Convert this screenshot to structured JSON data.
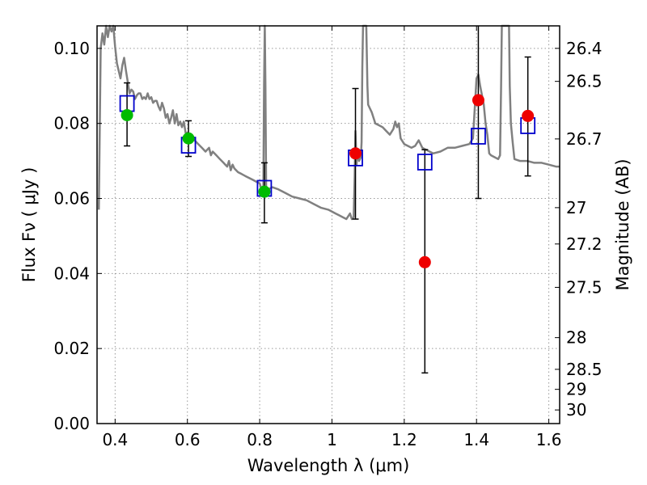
{
  "chart_data": {
    "type": "scatter",
    "title": "",
    "xlabel": "Wavelength  λ (μm)",
    "ylabel": "Flux  Fν  ( μJy )",
    "y2label": "Magnitude (AB)",
    "xlim": [
      0.35,
      1.63
    ],
    "ylim": [
      0.0,
      0.106
    ],
    "grid": true,
    "x_ticks": [
      0.4,
      0.6,
      0.8,
      1.0,
      1.2,
      1.4,
      1.6
    ],
    "x_tick_labels": [
      "0.4",
      "0.6",
      "0.8",
      "1",
      "1.2",
      "1.4",
      "1.6"
    ],
    "y_ticks": [
      0.0,
      0.02,
      0.04,
      0.06,
      0.08,
      0.1
    ],
    "y_tick_labels": [
      "0.00",
      "0.02",
      "0.04",
      "0.06",
      "0.08",
      "0.10"
    ],
    "y2_tick_labels": [
      "26.4",
      "26.5",
      "26.7",
      "27",
      "27.2",
      "27.5",
      "28",
      "28.5",
      "29",
      "30"
    ],
    "y2_ticks": [
      26.4,
      26.5,
      26.7,
      27.0,
      27.2,
      27.5,
      28.0,
      28.5,
      29.0,
      30.0
    ],
    "colors": {
      "model": "#808080",
      "green_points": "#00bb00",
      "red_points": "#ee0000",
      "model_boxes": "#0000cc",
      "error_bars": "#000000",
      "grid": "#999999"
    },
    "series": [
      {
        "marker": "line",
        "points": [
          [
            0.355,
            0.057
          ],
          [
            0.36,
            0.1
          ],
          [
            0.365,
            0.104
          ],
          [
            0.37,
            0.101
          ],
          [
            0.375,
            0.106
          ],
          [
            0.38,
            0.103
          ],
          [
            0.385,
            0.106
          ],
          [
            0.39,
            0.1045
          ],
          [
            0.395,
            0.106
          ],
          [
            0.4,
            0.1005
          ],
          [
            0.405,
            0.096
          ],
          [
            0.41,
            0.094
          ],
          [
            0.415,
            0.092
          ],
          [
            0.42,
            0.0955
          ],
          [
            0.425,
            0.0975
          ],
          [
            0.43,
            0.094
          ],
          [
            0.435,
            0.091
          ],
          [
            0.44,
            0.088
          ],
          [
            0.445,
            0.089
          ],
          [
            0.45,
            0.0885
          ],
          [
            0.455,
            0.0865
          ],
          [
            0.46,
            0.0875
          ],
          [
            0.465,
            0.088
          ],
          [
            0.47,
            0.088
          ],
          [
            0.475,
            0.0865
          ],
          [
            0.48,
            0.087
          ],
          [
            0.485,
            0.0865
          ],
          [
            0.49,
            0.088
          ],
          [
            0.495,
            0.0865
          ],
          [
            0.5,
            0.087
          ],
          [
            0.505,
            0.0855
          ],
          [
            0.51,
            0.086
          ],
          [
            0.515,
            0.086
          ],
          [
            0.52,
            0.0845
          ],
          [
            0.525,
            0.0835
          ],
          [
            0.53,
            0.0855
          ],
          [
            0.535,
            0.084
          ],
          [
            0.54,
            0.0815
          ],
          [
            0.545,
            0.0825
          ],
          [
            0.55,
            0.08
          ],
          [
            0.555,
            0.0815
          ],
          [
            0.56,
            0.0835
          ],
          [
            0.565,
            0.08
          ],
          [
            0.57,
            0.0825
          ],
          [
            0.575,
            0.0795
          ],
          [
            0.58,
            0.0805
          ],
          [
            0.585,
            0.079
          ],
          [
            0.59,
            0.0805
          ],
          [
            0.595,
            0.0775
          ],
          [
            0.6,
            0.0775
          ],
          [
            0.61,
            0.0765
          ],
          [
            0.62,
            0.0755
          ],
          [
            0.63,
            0.0745
          ],
          [
            0.64,
            0.0735
          ],
          [
            0.65,
            0.0725
          ],
          [
            0.66,
            0.0735
          ],
          [
            0.665,
            0.0715
          ],
          [
            0.67,
            0.0725
          ],
          [
            0.68,
            0.0715
          ],
          [
            0.69,
            0.0705
          ],
          [
            0.7,
            0.0695
          ],
          [
            0.705,
            0.069
          ],
          [
            0.71,
            0.0685
          ],
          [
            0.715,
            0.07
          ],
          [
            0.72,
            0.0675
          ],
          [
            0.725,
            0.069
          ],
          [
            0.73,
            0.068
          ],
          [
            0.74,
            0.067
          ],
          [
            0.75,
            0.0665
          ],
          [
            0.76,
            0.066
          ],
          [
            0.77,
            0.0655
          ],
          [
            0.78,
            0.065
          ],
          [
            0.79,
            0.0645
          ],
          [
            0.8,
            0.064
          ],
          [
            0.805,
            0.0625
          ],
          [
            0.81,
            0.062
          ],
          [
            0.812,
            0.09
          ],
          [
            0.814,
            0.106
          ],
          [
            0.816,
            0.09
          ],
          [
            0.818,
            0.062
          ],
          [
            0.825,
            0.0625
          ],
          [
            0.835,
            0.063
          ],
          [
            0.85,
            0.0625
          ],
          [
            0.87,
            0.0615
          ],
          [
            0.89,
            0.0605
          ],
          [
            0.91,
            0.06
          ],
          [
            0.93,
            0.0595
          ],
          [
            0.95,
            0.0585
          ],
          [
            0.97,
            0.0575
          ],
          [
            0.99,
            0.057
          ],
          [
            1.01,
            0.056
          ],
          [
            1.02,
            0.0555
          ],
          [
            1.03,
            0.055
          ],
          [
            1.04,
            0.0545
          ],
          [
            1.05,
            0.056
          ],
          [
            1.055,
            0.0545
          ],
          [
            1.06,
            0.055
          ],
          [
            1.063,
            0.066
          ],
          [
            1.065,
            0.078
          ],
          [
            1.068,
            0.069
          ],
          [
            1.07,
            0.072
          ],
          [
            1.075,
            0.07
          ],
          [
            1.08,
            0.071
          ],
          [
            1.082,
            0.075
          ],
          [
            1.084,
            0.095
          ],
          [
            1.086,
            0.106
          ],
          [
            1.095,
            0.106
          ],
          [
            1.098,
            0.09
          ],
          [
            1.1,
            0.085
          ],
          [
            1.11,
            0.083
          ],
          [
            1.12,
            0.08
          ],
          [
            1.13,
            0.0795
          ],
          [
            1.14,
            0.079
          ],
          [
            1.15,
            0.078
          ],
          [
            1.16,
            0.077
          ],
          [
            1.17,
            0.0785
          ],
          [
            1.175,
            0.0805
          ],
          [
            1.18,
            0.079
          ],
          [
            1.185,
            0.08
          ],
          [
            1.19,
            0.076
          ],
          [
            1.2,
            0.0745
          ],
          [
            1.21,
            0.074
          ],
          [
            1.22,
            0.0735
          ],
          [
            1.23,
            0.074
          ],
          [
            1.24,
            0.0755
          ],
          [
            1.25,
            0.0735
          ],
          [
            1.26,
            0.073
          ],
          [
            1.27,
            0.0725
          ],
          [
            1.28,
            0.072
          ],
          [
            1.3,
            0.0725
          ],
          [
            1.32,
            0.0735
          ],
          [
            1.34,
            0.0735
          ],
          [
            1.36,
            0.074
          ],
          [
            1.38,
            0.0745
          ],
          [
            1.39,
            0.076
          ],
          [
            1.395,
            0.084
          ],
          [
            1.4,
            0.092
          ],
          [
            1.405,
            0.093
          ],
          [
            1.41,
            0.09
          ],
          [
            1.42,
            0.085
          ],
          [
            1.425,
            0.08
          ],
          [
            1.43,
            0.077
          ],
          [
            1.435,
            0.072
          ],
          [
            1.44,
            0.0715
          ],
          [
            1.45,
            0.071
          ],
          [
            1.46,
            0.0705
          ],
          [
            1.465,
            0.0715
          ],
          [
            1.468,
            0.09
          ],
          [
            1.47,
            0.106
          ],
          [
            1.49,
            0.106
          ],
          [
            1.492,
            0.09
          ],
          [
            1.495,
            0.08
          ],
          [
            1.5,
            0.075
          ],
          [
            1.505,
            0.0705
          ],
          [
            1.52,
            0.07
          ],
          [
            1.54,
            0.07
          ],
          [
            1.56,
            0.0695
          ],
          [
            1.58,
            0.0695
          ],
          [
            1.6,
            0.069
          ],
          [
            1.62,
            0.0685
          ],
          [
            1.63,
            0.0685
          ]
        ]
      },
      {
        "marker": "circle",
        "points": [
          {
            "x": 0.433,
            "y": 0.0822
          },
          {
            "x": 0.603,
            "y": 0.076
          },
          {
            "x": 0.813,
            "y": 0.0618
          }
        ],
        "err_low": [
          0.074,
          0.0712,
          0.0535
        ],
        "err_high": [
          0.0908,
          0.0807,
          0.0695
        ]
      },
      {
        "marker": "circle",
        "points": [
          {
            "x": 1.065,
            "y": 0.072
          },
          {
            "x": 1.257,
            "y": 0.043
          },
          {
            "x": 1.405,
            "y": 0.0862
          },
          {
            "x": 1.542,
            "y": 0.082
          }
        ],
        "err_low": [
          0.0545,
          0.0135,
          0.06,
          0.066
        ],
        "err_high": [
          0.0893,
          0.073,
          0.106,
          0.0977
        ]
      },
      {
        "marker": "square",
        "points": [
          {
            "x": 0.433,
            "y": 0.0853
          },
          {
            "x": 0.603,
            "y": 0.0742
          },
          {
            "x": 0.813,
            "y": 0.0627
          },
          {
            "x": 1.065,
            "y": 0.0708
          },
          {
            "x": 1.257,
            "y": 0.0697
          },
          {
            "x": 1.405,
            "y": 0.0766
          },
          {
            "x": 1.542,
            "y": 0.0794
          }
        ]
      }
    ]
  }
}
